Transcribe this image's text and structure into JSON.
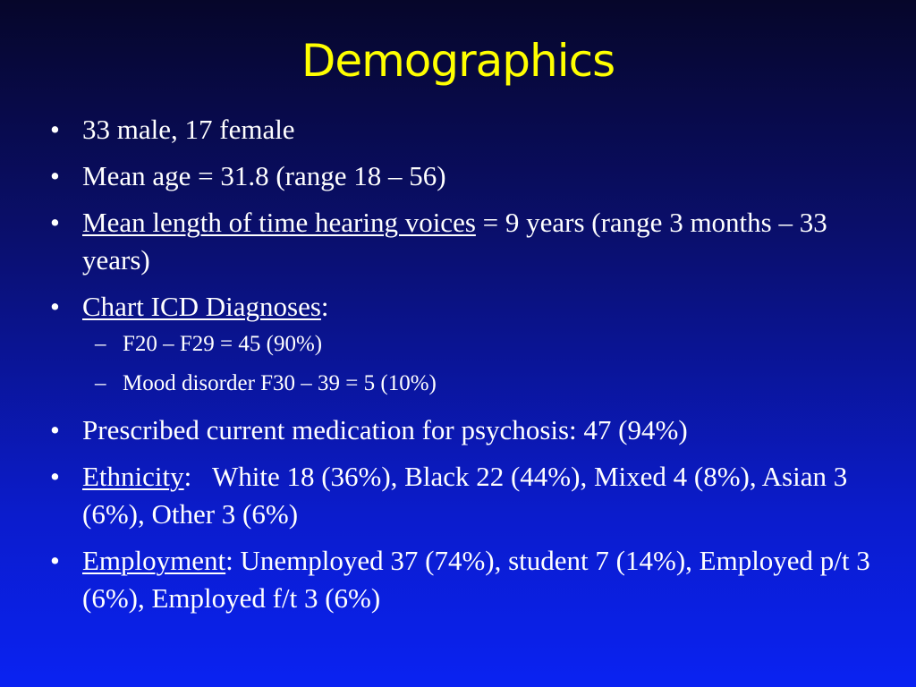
{
  "slide": {
    "title": "Demographics",
    "bullets": [
      {
        "text": "33 male, 17 female"
      },
      {
        "text": "Mean age = 31.8 (range 18 – 56)"
      },
      {
        "label": "Mean length of time hearing voices",
        "text": " = 9 years (range 3 months – 33 years)"
      },
      {
        "label": "Chart ICD Diagnoses",
        "text": ":"
      },
      {
        "text": "Prescribed current medication for psychosis: 47 (94%)"
      },
      {
        "label": "Ethnicity",
        "text": ":   White 18 (36%), Black 22 (44%), Mixed 4 (8%), Asian 3 (6%), Other 3 (6%)"
      },
      {
        "label": "Employment",
        "text": ": Unemployed 37 (74%), student 7 (14%), Employed p/t 3 (6%), Employed f/t 3 (6%)"
      }
    ],
    "sub_bullets": [
      {
        "text": "F20 – F29 = 45 (90%)"
      },
      {
        "text": "Mood disorder F30 – 39 = 5 (10%)"
      }
    ],
    "bullet_marker": "•",
    "sub_marker": "–"
  },
  "colors": {
    "title": "#ffff00",
    "text": "#ffffff",
    "background_top": "#06062a",
    "background_bottom": "#0a22f2"
  }
}
